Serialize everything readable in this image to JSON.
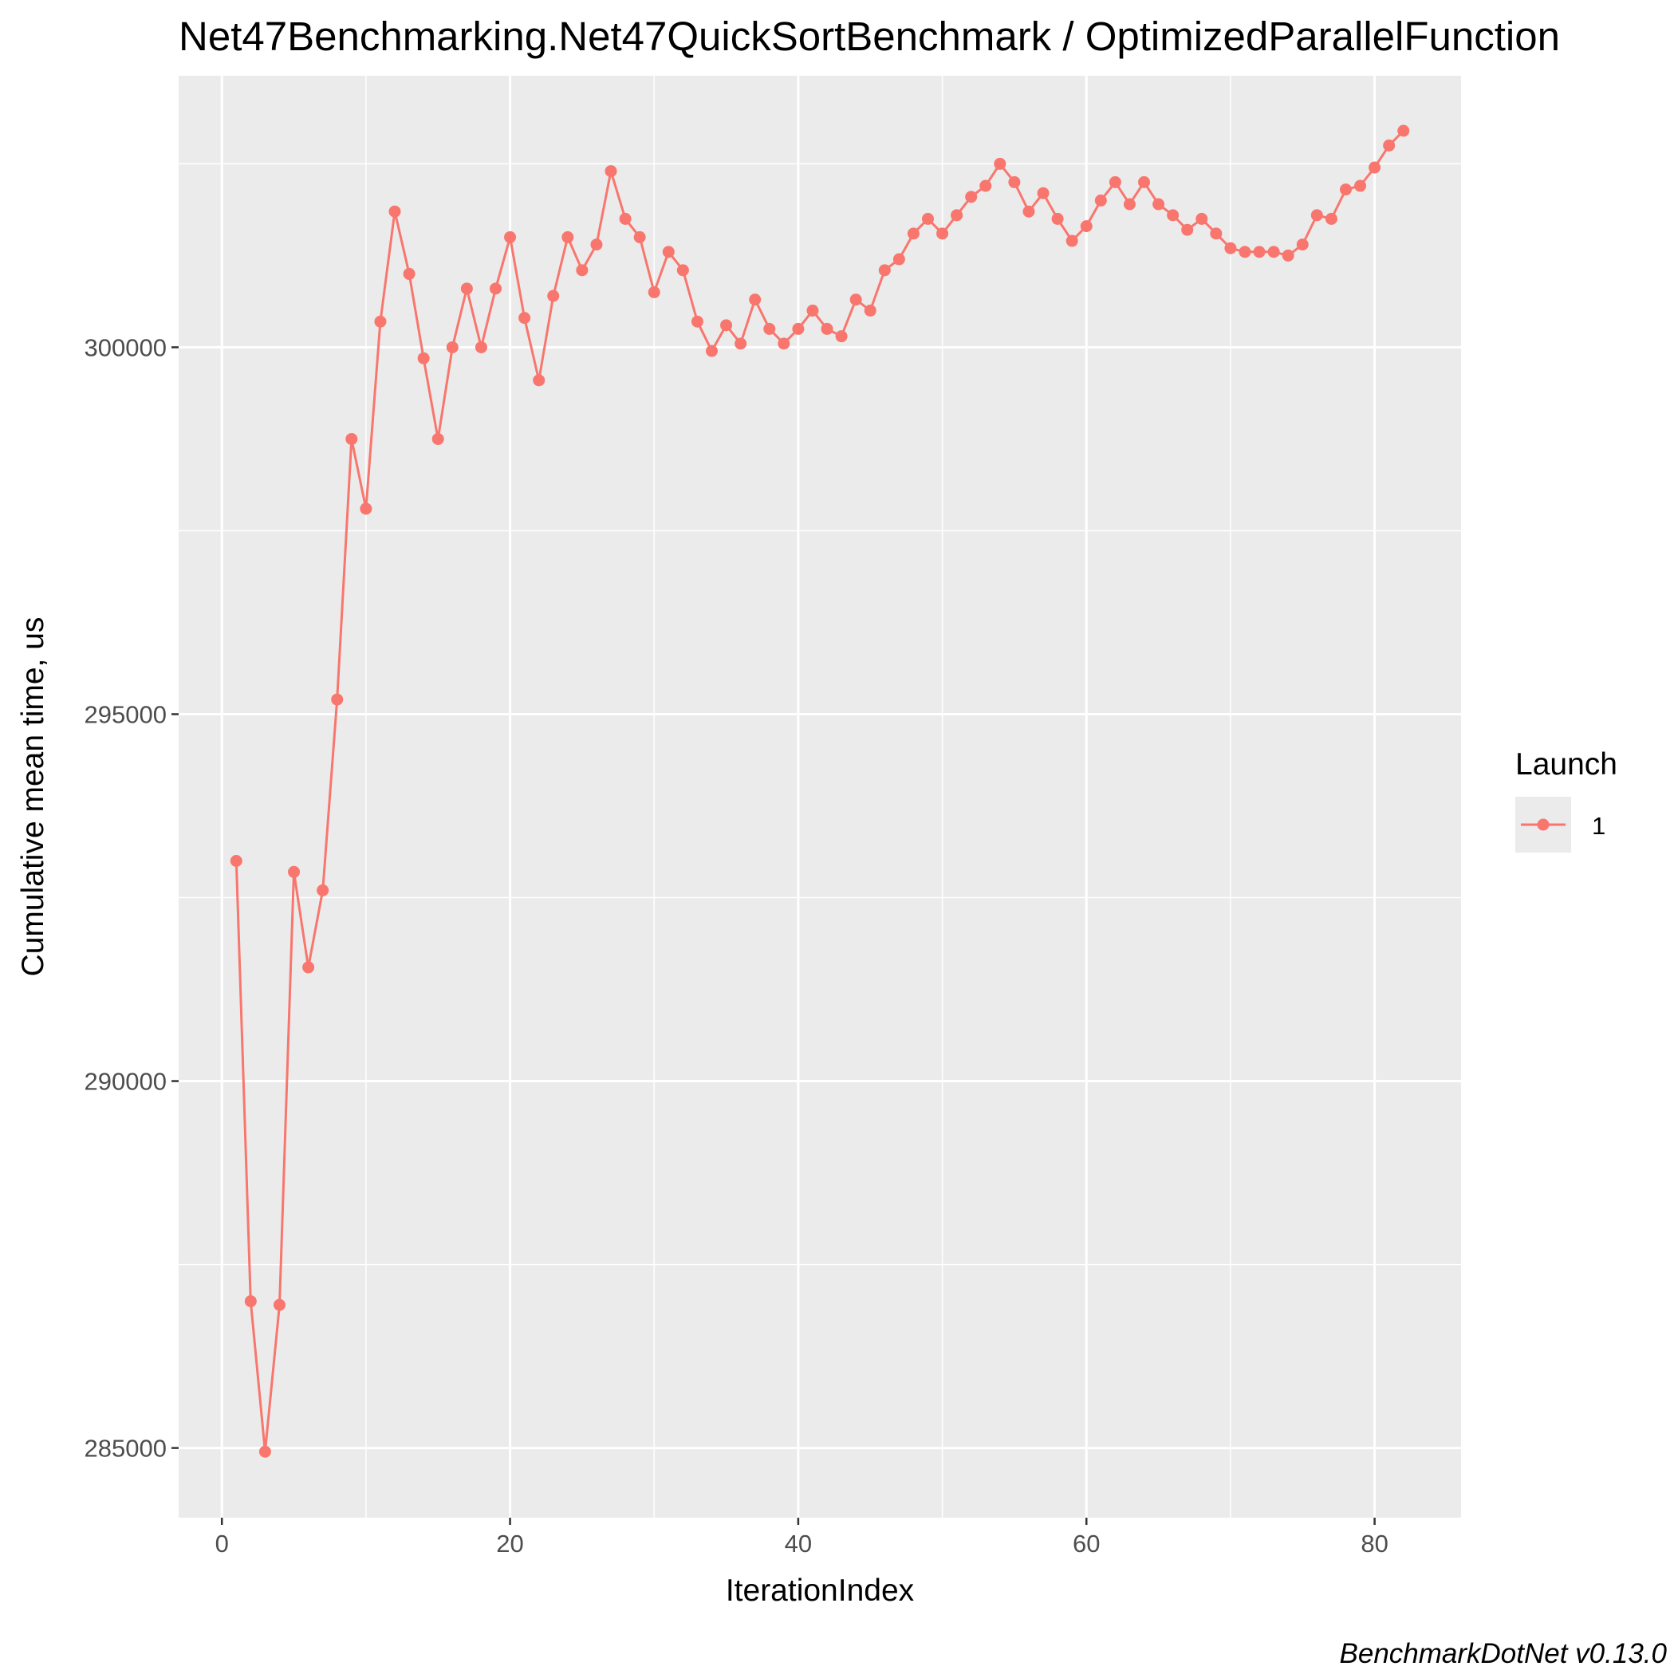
{
  "chart_data": {
    "type": "line",
    "title": "Net47Benchmarking.Net47QuickSortBenchmark / OptimizedParallelFunction",
    "xlabel": "IterationIndex",
    "ylabel": "Cumulative mean time, us",
    "caption": "BenchmarkDotNet v0.13.0",
    "xlim": [
      -3,
      86
    ],
    "ylim": [
      284050,
      303700
    ],
    "x_ticks": [
      0,
      20,
      40,
      60,
      80
    ],
    "x_tick_labels": [
      "0",
      "20",
      "40",
      "60",
      "80"
    ],
    "y_ticks": [
      285000,
      290000,
      295000,
      300000
    ],
    "y_tick_labels": [
      "285000",
      "290000",
      "295000",
      "300000"
    ],
    "x_minor": [
      10,
      30,
      50,
      70
    ],
    "y_minor": [
      287500,
      292500,
      297500,
      302500
    ],
    "grid": true,
    "background": "#ebebeb",
    "legend": {
      "title": "Launch",
      "position": "right",
      "entries": [
        "1"
      ]
    },
    "series": [
      {
        "name": "1",
        "color": "#f8766d",
        "x": [
          1,
          2,
          3,
          4,
          5,
          6,
          7,
          8,
          9,
          10,
          11,
          12,
          13,
          14,
          15,
          16,
          17,
          18,
          19,
          20,
          21,
          22,
          23,
          24,
          25,
          26,
          27,
          28,
          29,
          30,
          31,
          32,
          33,
          34,
          35,
          36,
          37,
          38,
          39,
          40,
          41,
          42,
          43,
          44,
          45,
          46,
          47,
          48,
          49,
          50,
          51,
          52,
          53,
          54,
          55,
          56,
          57,
          58,
          59,
          60,
          61,
          62,
          63,
          64,
          65,
          66,
          67,
          68,
          69,
          70,
          71,
          72,
          73,
          74,
          75,
          76,
          77,
          78,
          79,
          80,
          81,
          82
        ],
        "y": [
          293000,
          287000,
          284950,
          286950,
          292850,
          291550,
          292600,
          295200,
          298750,
          297800,
          300350,
          301850,
          301000,
          299850,
          298750,
          300000,
          300800,
          300000,
          300800,
          301500,
          300400,
          299550,
          300700,
          301500,
          301050,
          301400,
          302400,
          301750,
          301500,
          300750,
          301300,
          301050,
          300350,
          299950,
          300300,
          300050,
          300650,
          300250,
          300050,
          300250,
          300500,
          300250,
          300150,
          300650,
          300500,
          301050,
          301200,
          301550,
          301750,
          301550,
          301800,
          302050,
          302200,
          302500,
          302250,
          301850,
          302100,
          301750,
          301450,
          301650,
          302000,
          302250,
          301950,
          302250,
          301950,
          301800,
          301600,
          301750,
          301550,
          301350,
          301300,
          301300,
          301300,
          301250,
          301400,
          301800,
          301750,
          302150,
          302200,
          302450,
          302750,
          302950
        ]
      }
    ]
  }
}
